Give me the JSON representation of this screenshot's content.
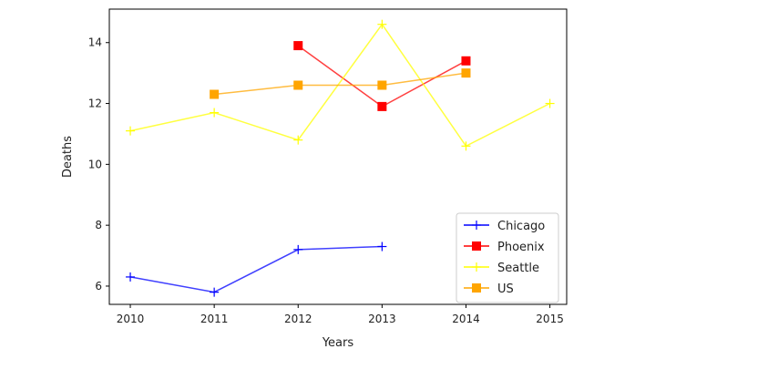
{
  "chart_data": {
    "type": "line",
    "title": "",
    "xlabel": "Years",
    "ylabel": "Deaths",
    "xlim": [
      2009.75,
      2015.2
    ],
    "ylim": [
      5.4,
      15.1
    ],
    "xticks": [
      "2010",
      "2011",
      "2012",
      "2013",
      "2014",
      "2015"
    ],
    "yticks": [
      "6",
      "8",
      "10",
      "12",
      "14"
    ],
    "grid": false,
    "legend_position": "lower-right",
    "series": [
      {
        "name": "Chicago",
        "color": "#0000ff",
        "marker": "plus",
        "points": [
          [
            2010,
            6.3
          ],
          [
            2011,
            5.8
          ],
          [
            2012,
            7.2
          ],
          [
            2013,
            7.3
          ]
        ]
      },
      {
        "name": "Phoenix",
        "color": "#ff0000",
        "marker": "square",
        "points": [
          [
            2012,
            13.9
          ],
          [
            2013,
            11.9
          ],
          [
            2014,
            13.4
          ]
        ]
      },
      {
        "name": "Seattle",
        "color": "#ffff00",
        "marker": "plus",
        "points": [
          [
            2010,
            11.1
          ],
          [
            2011,
            11.7
          ],
          [
            2012,
            10.8
          ],
          [
            2013,
            14.6
          ],
          [
            2014,
            10.6
          ],
          [
            2015,
            12.0
          ]
        ]
      },
      {
        "name": "US",
        "color": "#ffa500",
        "marker": "square",
        "points": [
          [
            2011,
            12.3
          ],
          [
            2012,
            12.6
          ],
          [
            2013,
            12.6
          ],
          [
            2014,
            13.0
          ]
        ]
      }
    ]
  }
}
